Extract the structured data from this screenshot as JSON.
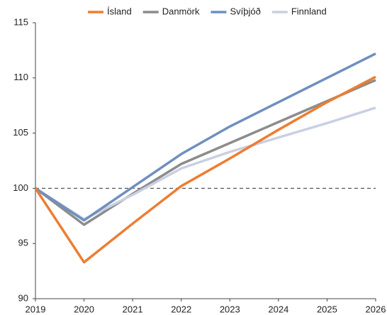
{
  "chart_data": {
    "type": "line",
    "x": [
      2019,
      2020,
      2021,
      2022,
      2023,
      2024,
      2025,
      2026
    ],
    "series": [
      {
        "name": "Ísland",
        "color": "#ed7d31",
        "values": [
          100,
          93.3,
          96.8,
          100.2,
          102.7,
          105.3,
          107.8,
          110.1
        ]
      },
      {
        "name": "Danmörk",
        "color": "#8c8c8c",
        "values": [
          100,
          96.7,
          99.5,
          102.2,
          104.1,
          106.0,
          107.9,
          109.8
        ]
      },
      {
        "name": "Svíþjóð",
        "color": "#6f8fbf",
        "values": [
          100,
          97.1,
          100.1,
          103.1,
          105.6,
          107.8,
          110.0,
          112.2
        ]
      },
      {
        "name": "Finnland",
        "color": "#c9d0e2",
        "values": [
          100,
          97.2,
          99.4,
          101.8,
          103.3,
          104.6,
          105.9,
          107.3
        ]
      }
    ],
    "xlim": [
      2019,
      2026
    ],
    "xticks": [
      2019,
      2020,
      2021,
      2022,
      2023,
      2024,
      2025,
      2026
    ],
    "ylim": [
      90,
      115
    ],
    "yticks": [
      90,
      95,
      100,
      105,
      110,
      115
    ],
    "reference_line": 100,
    "grid": false,
    "legend": "top"
  }
}
